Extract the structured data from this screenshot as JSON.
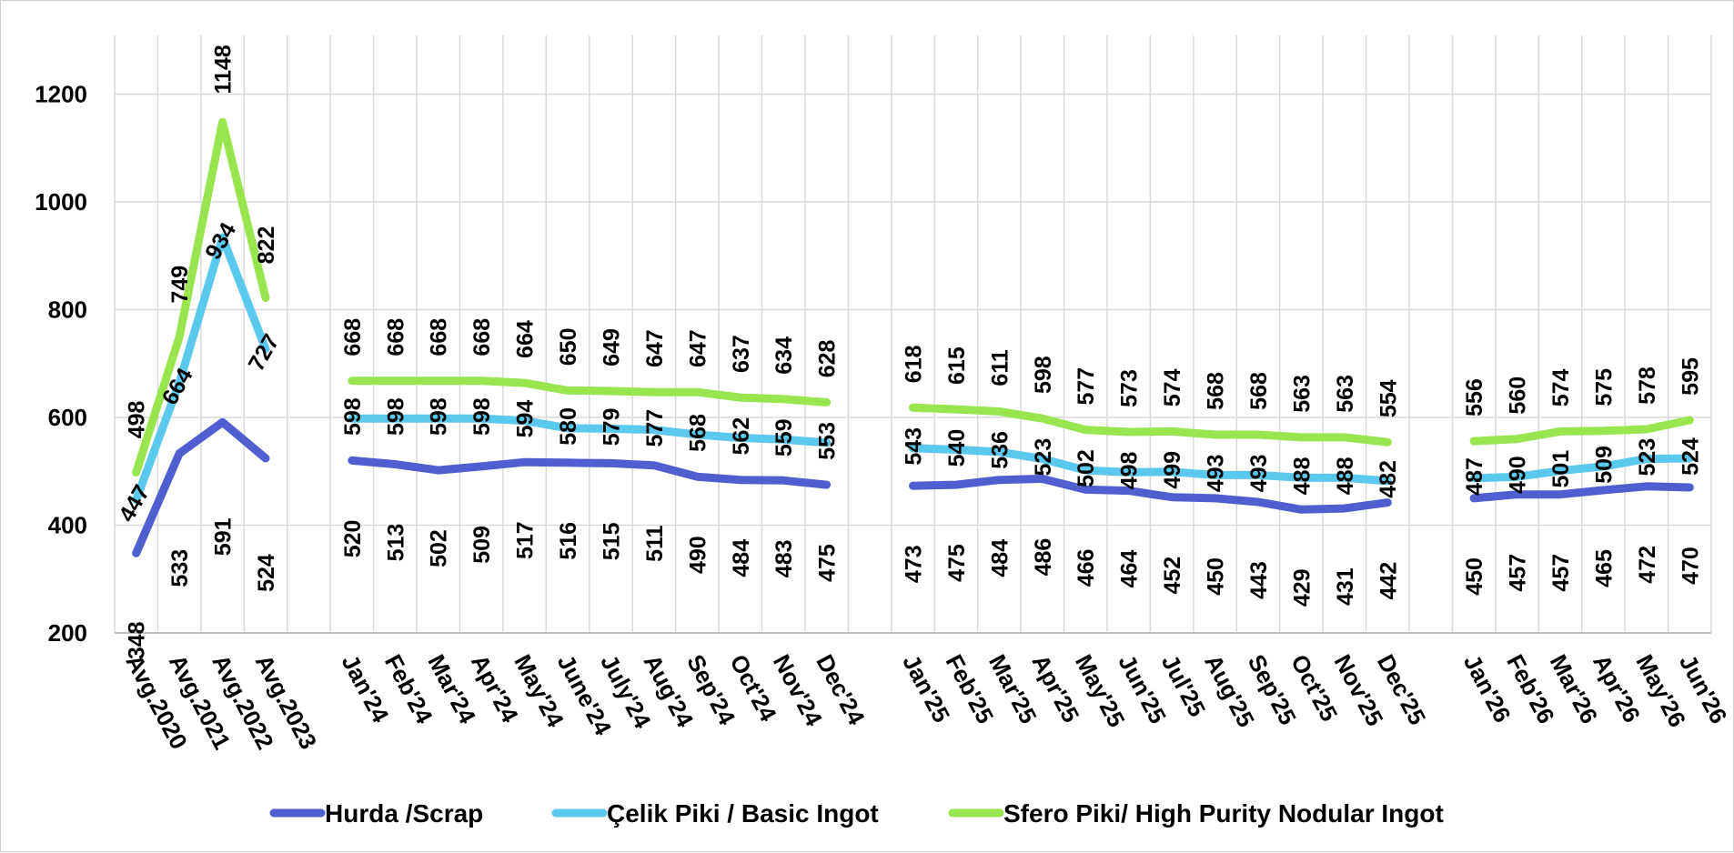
{
  "chart_data": {
    "type": "line",
    "title": "",
    "xlabel": "",
    "ylabel": "",
    "ylim": [
      200,
      1300
    ],
    "yticks": [
      200,
      400,
      600,
      800,
      1000,
      1200
    ],
    "grid": true,
    "legend_position": "bottom",
    "categories": [
      "Avg.2020",
      "Avg.2021",
      "Avg.2022",
      "Avg.2023",
      "",
      "Jan'24",
      "Feb'24",
      "Mar'24",
      "Apr'24",
      "May'24",
      "June'24",
      "July'24",
      "Aug'24",
      "Sep'24",
      "Oct'24",
      "Nov'24",
      "Dec'24",
      "",
      "Jan'25",
      "Feb'25",
      "Mar'25",
      "Apr'25",
      "May'25",
      "Jun'25",
      "Jul'25",
      "Aug'25",
      "Sep'25",
      "Oct'25",
      "Nov'25",
      "Dec'25",
      "",
      "Jan'26",
      "Feb'26",
      "Mar'26",
      "Apr'26",
      "May'26",
      "Jun'26"
    ],
    "series": [
      {
        "name": "Hurda /Scrap",
        "color": "#4F5FD0",
        "values": [
          348,
          533,
          591,
          524,
          null,
          520,
          513,
          502,
          509,
          517,
          516,
          515,
          511,
          490,
          484,
          483,
          475,
          null,
          473,
          475,
          484,
          486,
          466,
          464,
          452,
          450,
          443,
          429,
          431,
          442,
          null,
          450,
          457,
          457,
          465,
          472,
          470
        ]
      },
      {
        "name": "Çelik Piki / Basic Ingot",
        "color": "#5BC8EE",
        "values": [
          447,
          664,
          934,
          727,
          null,
          598,
          598,
          598,
          598,
          594,
          580,
          579,
          577,
          568,
          562,
          559,
          553,
          null,
          543,
          540,
          536,
          523,
          502,
          498,
          499,
          493,
          493,
          488,
          488,
          482,
          null,
          487,
          490,
          501,
          509,
          523,
          524
        ]
      },
      {
        "name": "Sfero Piki/ High Purity Nodular Ingot",
        "color": "#99E550",
        "values": [
          498,
          749,
          1148,
          822,
          null,
          668,
          668,
          668,
          668,
          664,
          650,
          649,
          647,
          647,
          637,
          634,
          628,
          null,
          618,
          615,
          611,
          598,
          577,
          573,
          574,
          568,
          568,
          563,
          563,
          554,
          null,
          556,
          560,
          574,
          575,
          578,
          595
        ]
      }
    ]
  }
}
